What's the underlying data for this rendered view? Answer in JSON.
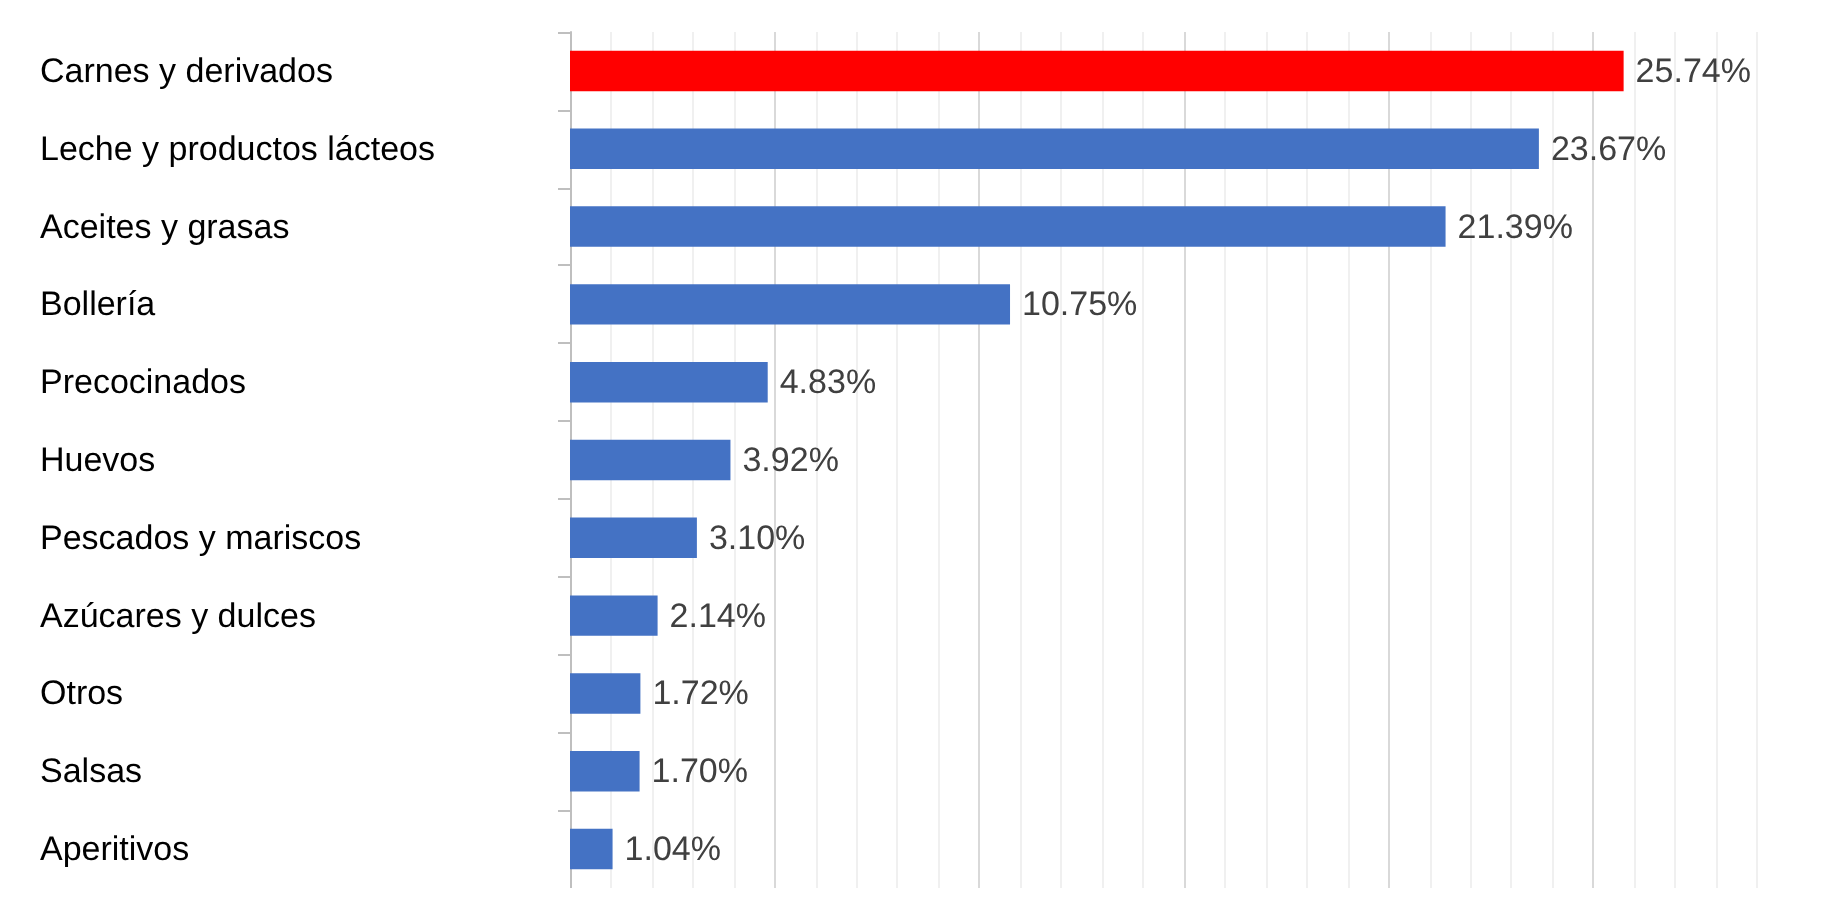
{
  "chart_data": {
    "type": "bar",
    "orientation": "horizontal",
    "categories": [
      "Carnes y derivados",
      "Leche y productos lácteos",
      "Aceites y grasas",
      "Bollería",
      "Precocinados",
      "Huevos",
      "Pescados y mariscos",
      "Azúcares y dulces",
      "Otros",
      "Salsas",
      "Aperitivos"
    ],
    "values": [
      25.74,
      23.67,
      21.39,
      10.75,
      4.83,
      3.92,
      3.1,
      2.14,
      1.72,
      1.7,
      1.04
    ],
    "colors": [
      "#ff0000",
      "#4472c4",
      "#4472c4",
      "#4472c4",
      "#4472c4",
      "#4472c4",
      "#4472c4",
      "#4472c4",
      "#4472c4",
      "#4472c4",
      "#4472c4"
    ],
    "value_labels": [
      "25.74%",
      "23.67%",
      "21.39%",
      "10.75%",
      "4.83%",
      "3.92%",
      "3.10%",
      "2.14%",
      "1.72%",
      "1.70%",
      "1.04%"
    ],
    "xticks": [
      {
        "value": 0,
        "label": null
      },
      {
        "value": 5,
        "label": null
      },
      {
        "value": 10,
        "label": null
      },
      {
        "value": 15,
        "label": null
      },
      {
        "value": 20,
        "label": null
      },
      {
        "value": 25,
        "label": null
      }
    ],
    "tick_labels": "y",
    "grid": "x"
  }
}
